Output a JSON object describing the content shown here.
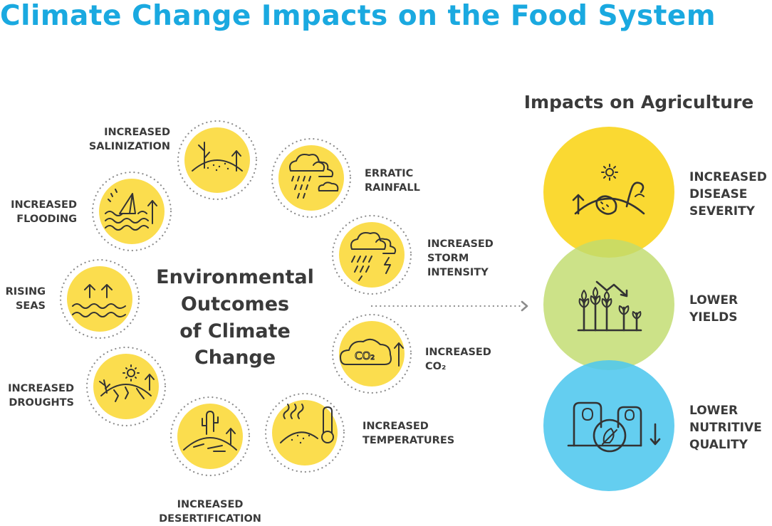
{
  "title": "Climate Change Impacts on the Food System",
  "center": {
    "lines": [
      "Environmental",
      "Outcomes",
      "of Climate",
      "Change"
    ]
  },
  "outcomes": [
    {
      "id": "salinization",
      "icon": "salinization-icon",
      "lines": [
        "INCREASED",
        "SALINIZATION"
      ]
    },
    {
      "id": "rainfall",
      "icon": "rain-cloud-icon",
      "lines": [
        "ERRATIC",
        "RAINFALL"
      ]
    },
    {
      "id": "storm",
      "icon": "storm-cloud-icon",
      "lines": [
        "INCREASED",
        "STORM",
        "INTENSITY"
      ]
    },
    {
      "id": "co2",
      "icon": "co2-cloud-icon",
      "lines": [
        "INCREASED",
        "CO₂"
      ]
    },
    {
      "id": "temperatures",
      "icon": "thermometer-icon",
      "lines": [
        "INCREASED",
        "TEMPERATURES"
      ]
    },
    {
      "id": "desertification",
      "icon": "cactus-icon",
      "lines": [
        "INCREASED",
        "DESERTIFICATION"
      ]
    },
    {
      "id": "droughts",
      "icon": "drought-icon",
      "lines": [
        "INCREASED",
        "DROUGHTS"
      ]
    },
    {
      "id": "seas",
      "icon": "rising-seas-icon",
      "lines": [
        "RISING",
        "SEAS"
      ]
    },
    {
      "id": "flooding",
      "icon": "flood-icon",
      "lines": [
        "INCREASED",
        "FLOODING"
      ]
    }
  ],
  "impacts_heading": "Impacts on Agriculture",
  "impacts": [
    {
      "id": "disease",
      "icon": "disease-icon",
      "color": "#fad932",
      "lines": [
        "INCREASED",
        "DISEASE",
        "SEVERITY"
      ]
    },
    {
      "id": "yields",
      "icon": "wheat-decline-icon",
      "color": "#c1dc6e",
      "lines": [
        "LOWER",
        "YIELDS"
      ]
    },
    {
      "id": "nutrition",
      "icon": "nutrition-icon",
      "color": "#4fc7ee",
      "lines": [
        "LOWER",
        "NUTRITIVE",
        "QUALITY"
      ]
    }
  ],
  "colors": {
    "title": "#1aa9e0",
    "outcome_circle": "#fbdd4e",
    "text": "#3a3a3a"
  }
}
